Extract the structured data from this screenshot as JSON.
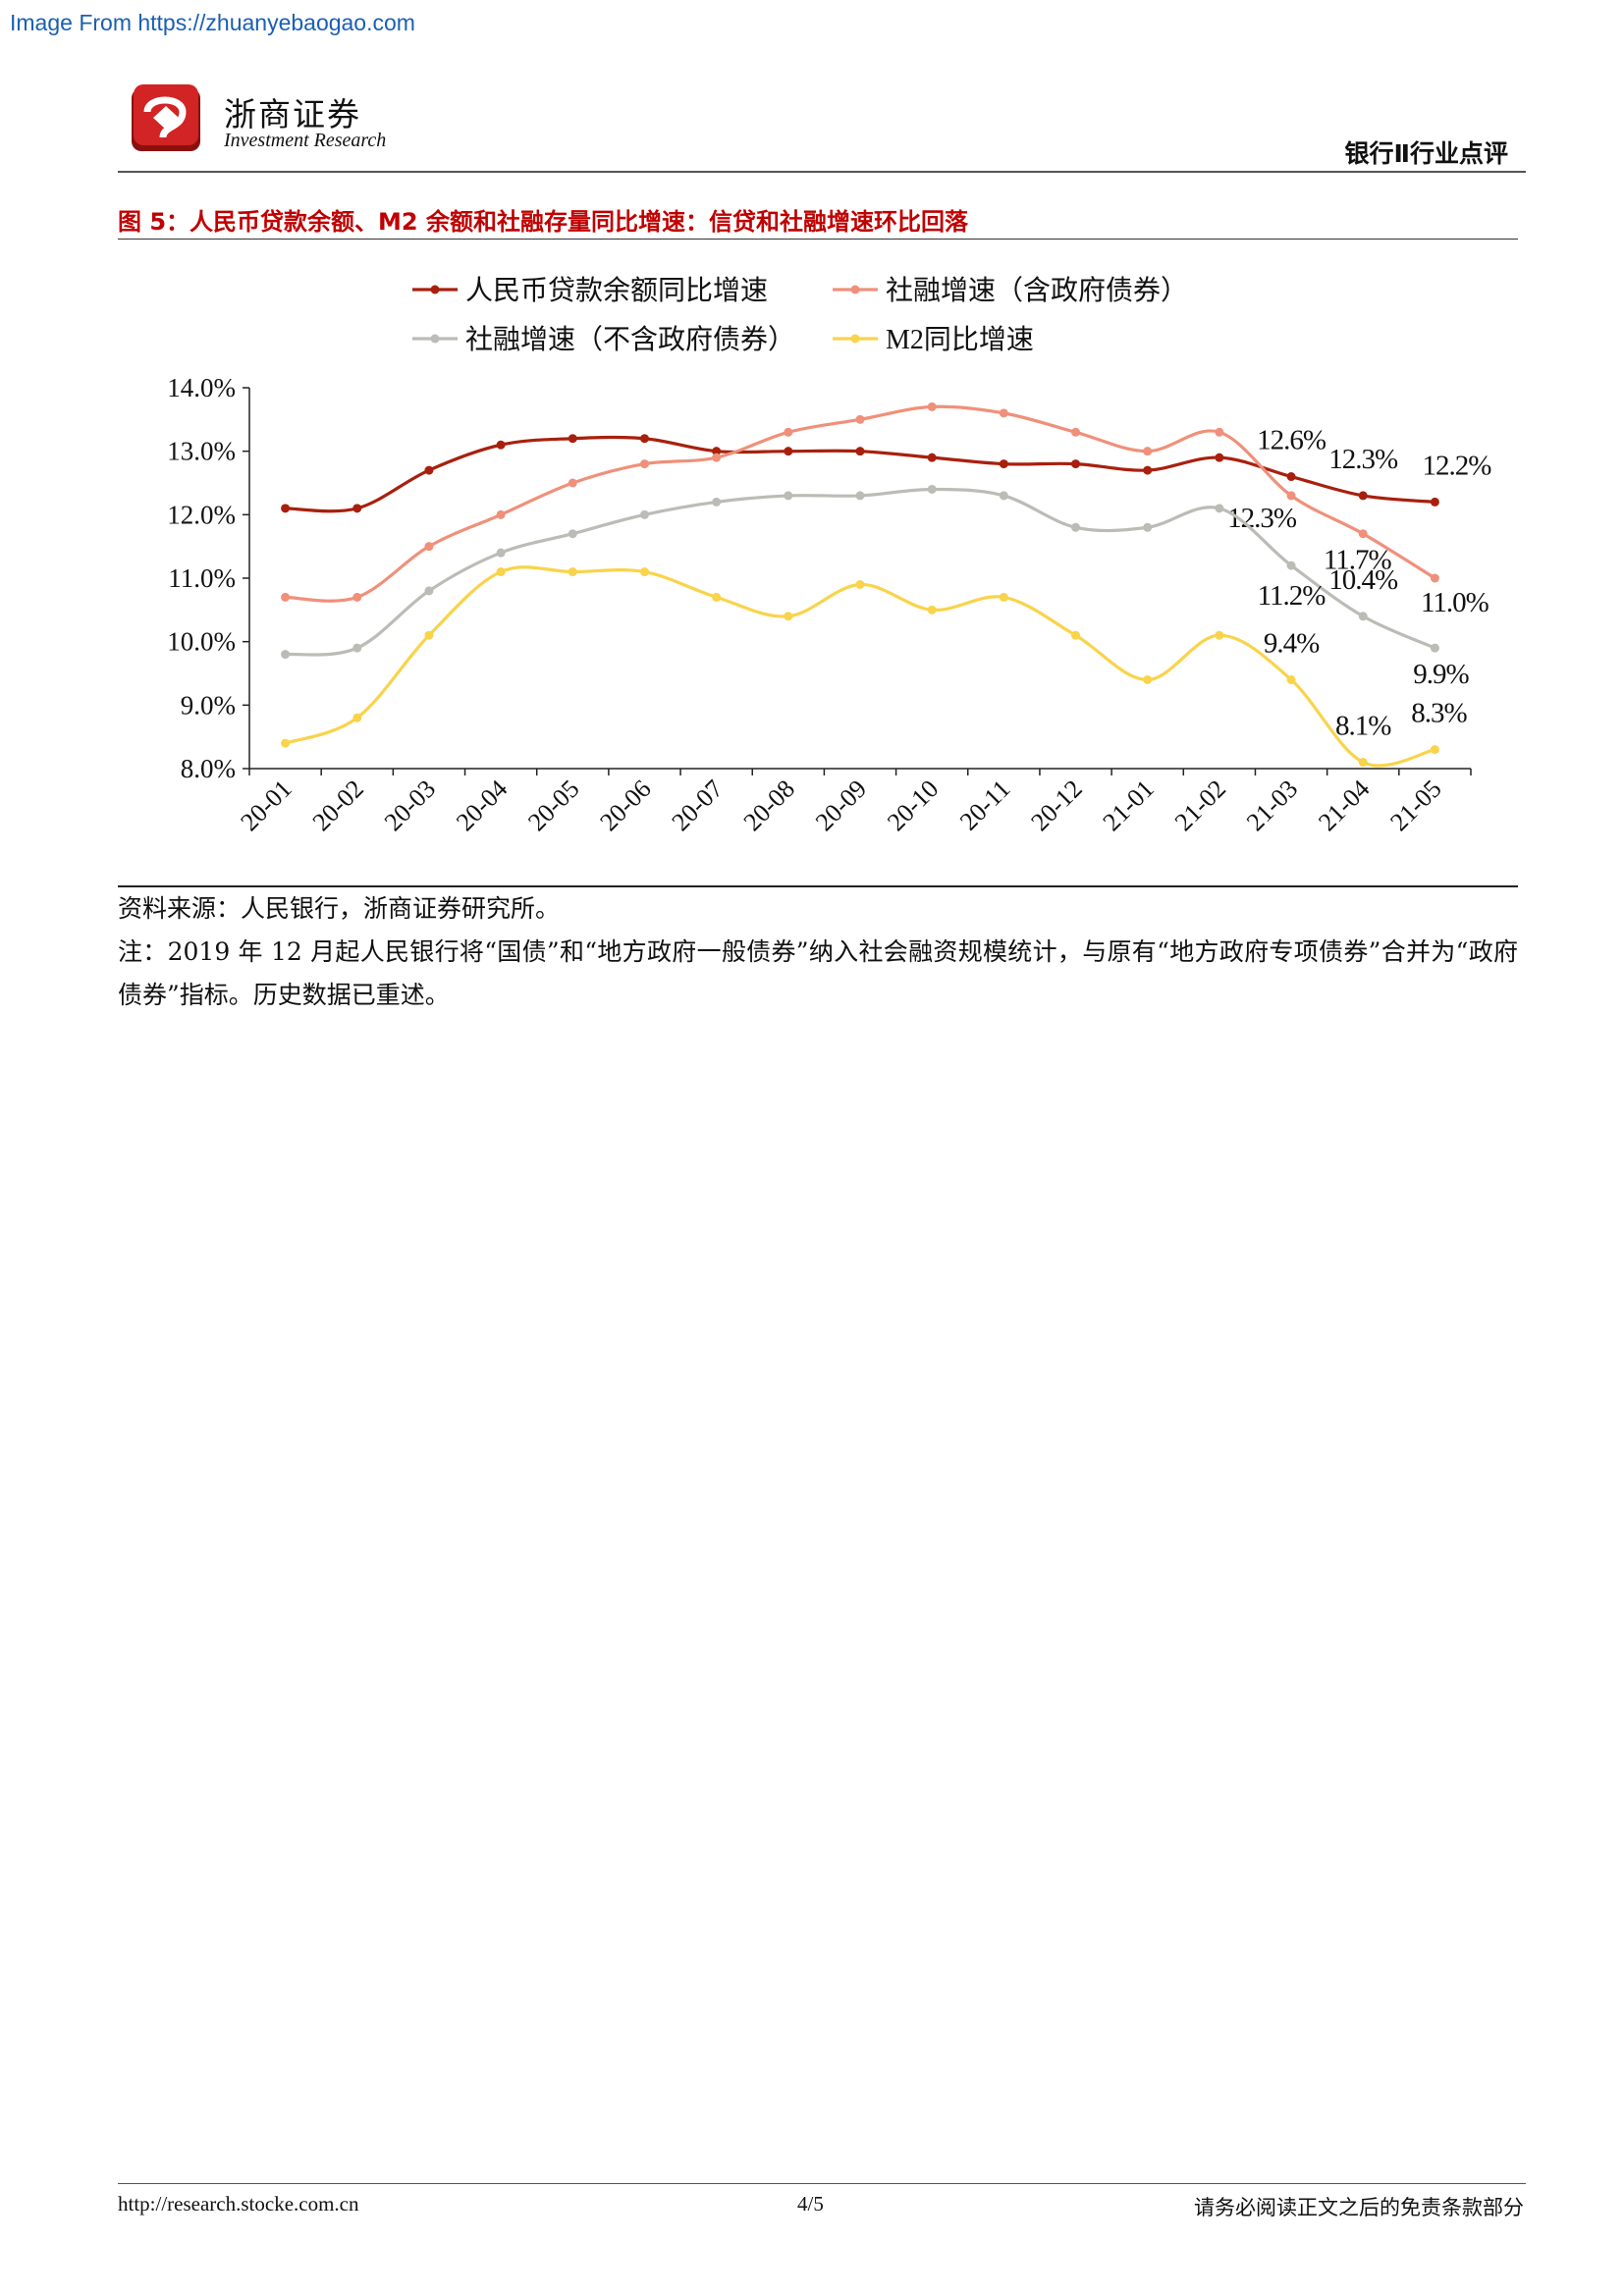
{
  "watermark": "Image From https://zhuanyebaogao.com",
  "header": {
    "brand_cn": "浙商证券",
    "brand_en": "Investment Research",
    "category": "银行Ⅱ行业点评"
  },
  "figure_title": "图 5：人民币贷款余额、M2 余额和社融存量同比增速：信贷和社融增速环比回落",
  "chart_data": {
    "type": "line",
    "categories": [
      "20-01",
      "20-02",
      "20-03",
      "20-04",
      "20-05",
      "20-06",
      "20-07",
      "20-08",
      "20-09",
      "20-10",
      "20-11",
      "20-12",
      "21-01",
      "21-02",
      "21-03",
      "21-04",
      "21-05"
    ],
    "ylim": [
      8.0,
      14.0
    ],
    "yticks": [
      "8.0%",
      "9.0%",
      "10.0%",
      "11.0%",
      "12.0%",
      "13.0%",
      "14.0%"
    ],
    "legend_position": "top",
    "grid": false,
    "series": [
      {
        "name": "人民币贷款余额同比增速",
        "color": "#a8200d",
        "values": [
          12.1,
          12.1,
          12.7,
          13.1,
          13.2,
          13.2,
          13.0,
          13.0,
          13.0,
          12.9,
          12.8,
          12.8,
          12.7,
          12.9,
          12.6,
          12.3,
          12.2
        ],
        "labels": [
          {
            "i": 14,
            "text": "12.6%"
          },
          {
            "i": 15,
            "text": "12.3%"
          },
          {
            "i": 16,
            "text": "12.2%"
          }
        ]
      },
      {
        "name": "社融增速（含政府债券）",
        "color": "#f0907a",
        "values": [
          10.7,
          10.7,
          11.5,
          12.0,
          12.5,
          12.8,
          12.9,
          13.3,
          13.5,
          13.7,
          13.6,
          13.3,
          13.0,
          13.3,
          12.3,
          11.7,
          11.0
        ],
        "labels": [
          {
            "i": 14,
            "text": "12.3%"
          },
          {
            "i": 15,
            "text": "11.7%"
          },
          {
            "i": 16,
            "text": "11.0%"
          }
        ]
      },
      {
        "name": "社融增速（不含政府债券）",
        "color": "#bcbcb6",
        "values": [
          9.8,
          9.9,
          10.8,
          11.4,
          11.7,
          12.0,
          12.2,
          12.3,
          12.3,
          12.4,
          12.3,
          11.8,
          11.8,
          12.1,
          11.2,
          10.4,
          9.9
        ],
        "labels": [
          {
            "i": 14,
            "text": "11.2%"
          },
          {
            "i": 15,
            "text": "10.4%"
          },
          {
            "i": 16,
            "text": "9.9%"
          }
        ]
      },
      {
        "name": "M2同比增速",
        "color": "#f9d34a",
        "values": [
          8.4,
          8.8,
          10.1,
          11.1,
          11.1,
          11.1,
          10.7,
          10.4,
          10.9,
          10.5,
          10.7,
          10.1,
          9.4,
          10.1,
          9.4,
          8.1,
          8.3
        ],
        "labels": [
          {
            "i": 14,
            "text": "9.4%"
          },
          {
            "i": 15,
            "text": "8.1%"
          },
          {
            "i": 16,
            "text": "8.3%"
          }
        ]
      }
    ]
  },
  "source_note": "资料来源：人民银行，浙商证券研究所。",
  "note": "注：2019 年 12 月起人民银行将“国债”和“地方政府一般债券”纳入社会融资规模统计，与原有“地方政府专项债券”合并为“政府债券”指标。历史数据已重述。",
  "footer": {
    "url": "http://research.stocke.com.cn",
    "page": "4/5",
    "disclaimer": "请务必阅读正文之后的免责条款部分"
  }
}
